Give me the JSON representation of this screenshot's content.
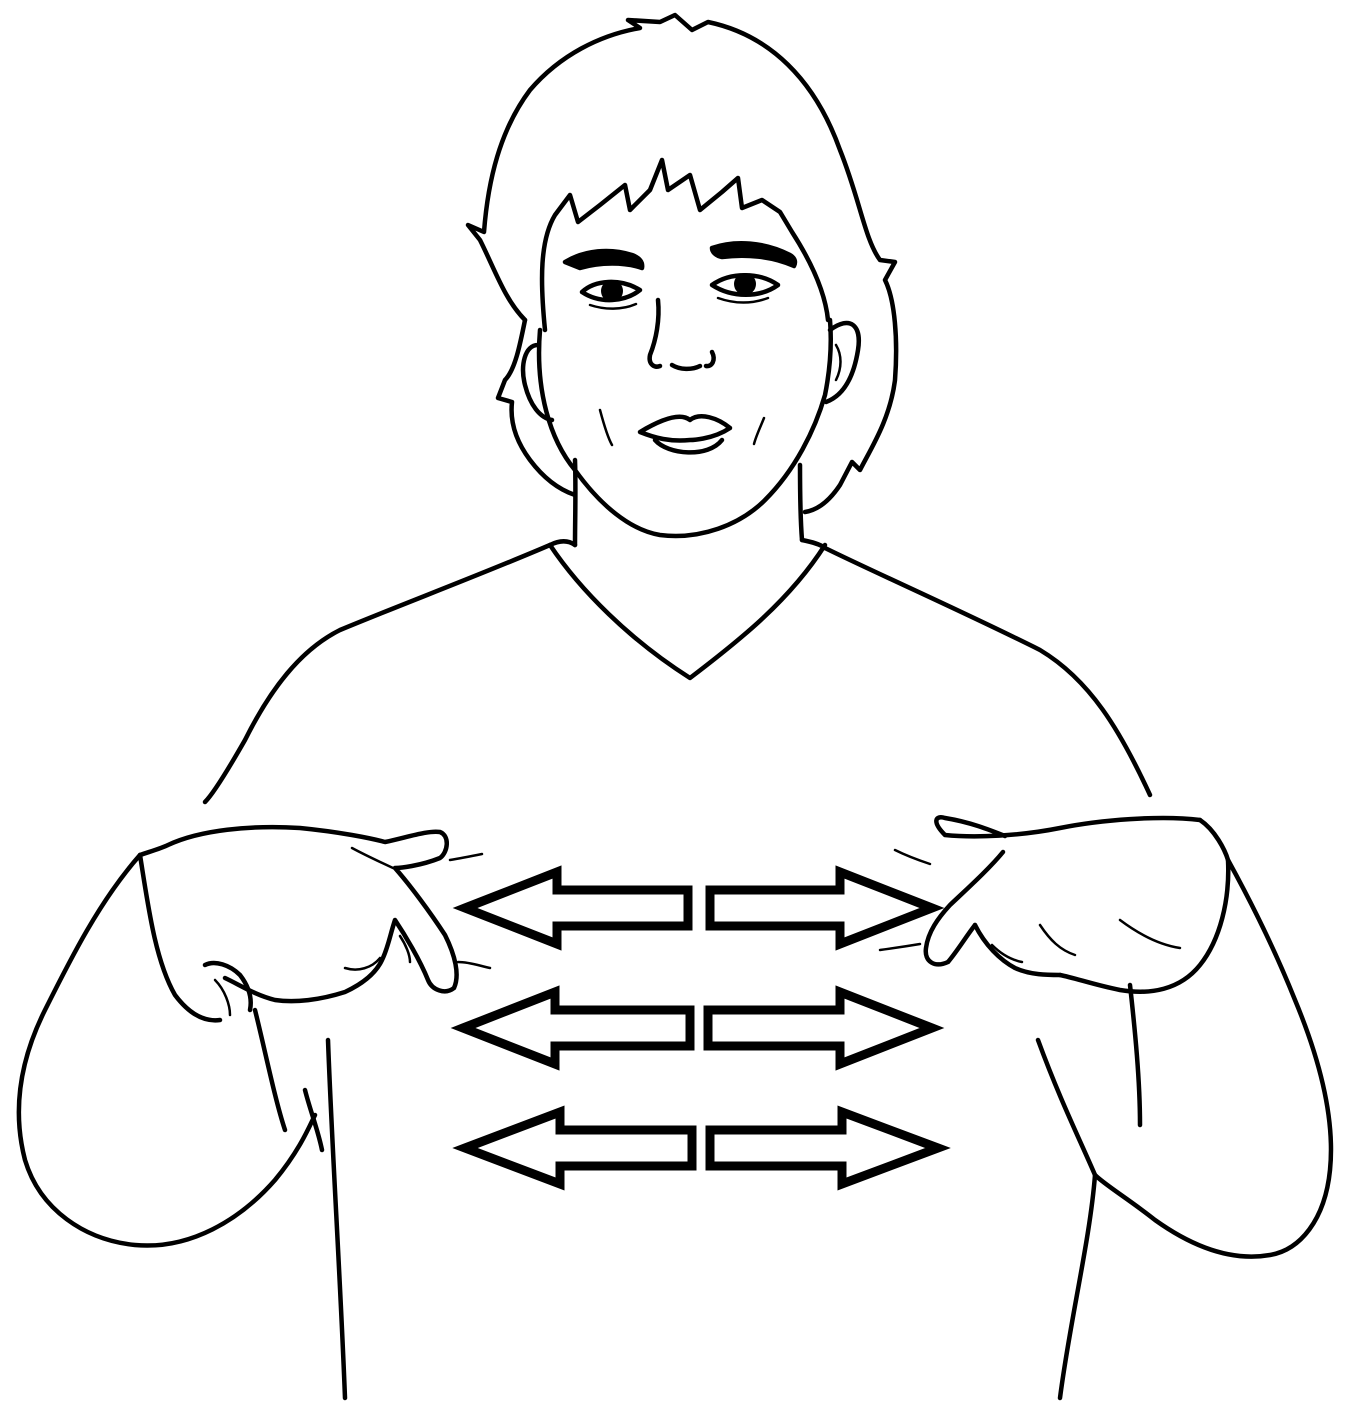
{
  "illustration": {
    "subject": "sign-language-figure",
    "ink_color": "#000000",
    "background_color": "#ffffff",
    "motion_arrows": {
      "rows": 3,
      "directions": [
        "left",
        "right"
      ],
      "style": "outlined-double-arrow"
    }
  }
}
